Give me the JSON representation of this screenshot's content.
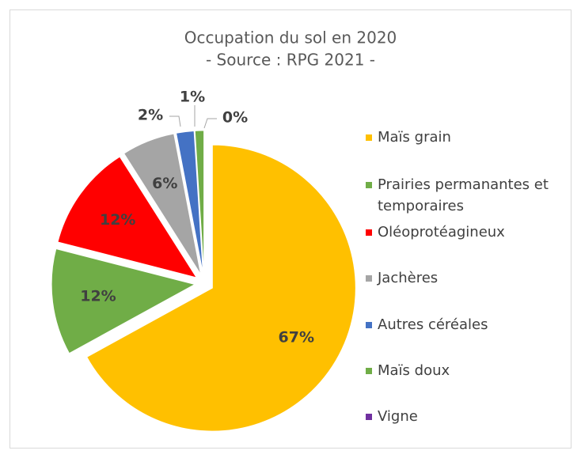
{
  "chart_data": {
    "type": "pie",
    "title": "Occupation du sol en 2020",
    "subtitle": "- Source : RPG 2021 -",
    "categories": [
      "Maïs grain",
      "Prairies permanantes et temporaires",
      "Oléoprotéagineux",
      "Jachères",
      "Autres céréales",
      "Maïs doux",
      "Vigne"
    ],
    "values": [
      67,
      12,
      12,
      6,
      2,
      1,
      0
    ],
    "value_labels": [
      "67%",
      "12%",
      "12%",
      "6%",
      "2%",
      "1%",
      "0%"
    ],
    "colors": [
      "#FFC000",
      "#70AD47",
      "#FF0000",
      "#A5A5A5",
      "#4472C4",
      "#70AD47",
      "#7030A0"
    ],
    "legend": "right"
  }
}
